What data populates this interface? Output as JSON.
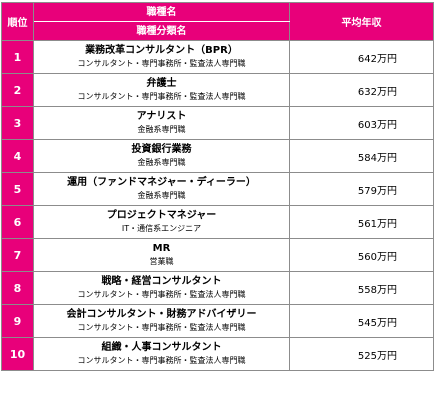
{
  "header": {
    "rank": "順位",
    "job": "職種名",
    "category": "職種分類名",
    "salary": "平均年収"
  },
  "rows": [
    {
      "rank": "1",
      "job": "業務改革コンサルタント（BPR）",
      "category": "コンサルタント・専門事務所・監査法人専門職",
      "salary": "642万円"
    },
    {
      "rank": "2",
      "job": "弁護士",
      "category": "コンサルタント・専門事務所・監査法人専門職",
      "salary": "632万円"
    },
    {
      "rank": "3",
      "job": "アナリスト",
      "category": "金融系専門職",
      "salary": "603万円"
    },
    {
      "rank": "4",
      "job": "投資銀行業務",
      "category": "金融系専門職",
      "salary": "584万円"
    },
    {
      "rank": "5",
      "job": "運用（ファンドマネジャー・ディーラー）",
      "category": "金融系専門職",
      "salary": "579万円"
    },
    {
      "rank": "6",
      "job": "プロジェクトマネジャー",
      "category": "IT・通信系エンジニア",
      "salary": "561万円"
    },
    {
      "rank": "7",
      "job": "MR",
      "category": "営業職",
      "salary": "560万円"
    },
    {
      "rank": "8",
      "job": "戦略・経営コンサルタント",
      "category": "コンサルタント・専門事務所・監査法人専門職",
      "salary": "558万円"
    },
    {
      "rank": "9",
      "job": "会計コンサルタント・財務アドバイザリー",
      "category": "コンサルタント・専門事務所・監査法人専門職",
      "salary": "545万円"
    },
    {
      "rank": "10",
      "job": "組織・人事コンサルタント",
      "category": "コンサルタント・専門事務所・監査法人専門職",
      "salary": "525万円"
    }
  ],
  "colors": {
    "accent": "#e8007a",
    "border": "#8c8c8c",
    "header_text": "#ffffff"
  }
}
